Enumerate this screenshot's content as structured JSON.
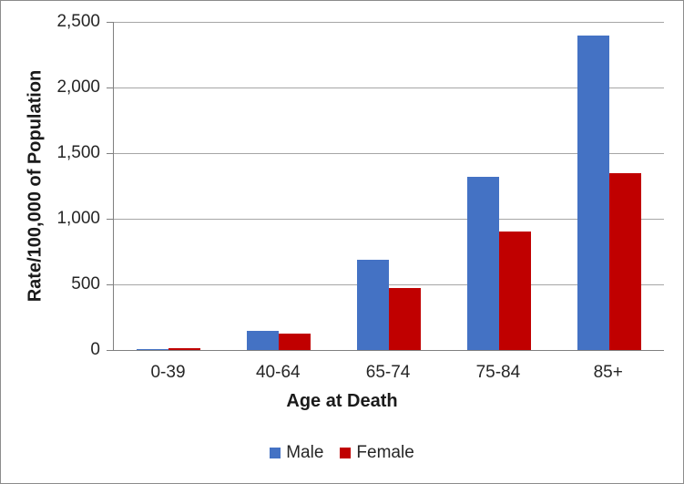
{
  "chart_data": {
    "type": "bar",
    "title": "",
    "categories": [
      "0-39",
      "40-64",
      "65-74",
      "75-84",
      "85+"
    ],
    "series": [
      {
        "name": "Male",
        "color": "#4472C4",
        "values": [
          10,
          145,
          690,
          1320,
          2395
        ]
      },
      {
        "name": "Female",
        "color": "#C00000",
        "values": [
          12,
          125,
          470,
          905,
          1345
        ]
      }
    ],
    "xlabel": "Age at Death",
    "ylabel": "Rate/100,000 of Population",
    "ylim": [
      0,
      2500
    ],
    "ytick_values": [
      0,
      500,
      1000,
      1500,
      2000,
      2500
    ],
    "ytick_labels": [
      "0",
      "500",
      "1,000",
      "1,500",
      "2,000",
      "2,500"
    ],
    "grid": true,
    "legend_position": "bottom",
    "colors": {
      "gridline": "#a6a6a6",
      "axis": "#808080",
      "text": "#262626"
    }
  }
}
